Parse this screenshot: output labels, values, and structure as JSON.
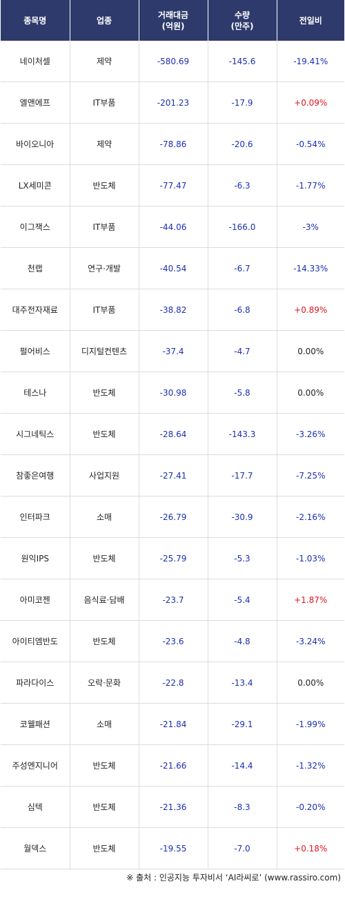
{
  "header": {
    "col_name": "종목명",
    "col_sector": "업종",
    "col_amount_line1": "거래대금",
    "col_amount_line2": "(억원)",
    "col_volume_line1": "수량",
    "col_volume_line2": "(만주)",
    "col_rate": "전일비"
  },
  "colors": {
    "header_bg": "#2e3a6b",
    "negative": "#1a2fb0",
    "positive": "#e0141e",
    "neutral": "#222222"
  },
  "rows": [
    {
      "name": "네이처셀",
      "sector": "제약",
      "amount": "-580.69",
      "volume": "-145.6",
      "rate": "-19.41%",
      "dir": "neg"
    },
    {
      "name": "엘앤에프",
      "sector": "IT부품",
      "amount": "-201.23",
      "volume": "-17.9",
      "rate": "+0.09%",
      "dir": "pos"
    },
    {
      "name": "바이오니아",
      "sector": "제약",
      "amount": "-78.86",
      "volume": "-20.6",
      "rate": "-0.54%",
      "dir": "neg"
    },
    {
      "name": "LX세미콘",
      "sector": "반도체",
      "amount": "-77.47",
      "volume": "-6.3",
      "rate": "-1.77%",
      "dir": "neg"
    },
    {
      "name": "이그잭스",
      "sector": "IT부품",
      "amount": "-44.06",
      "volume": "-166.0",
      "rate": "-3%",
      "dir": "neg"
    },
    {
      "name": "천랩",
      "sector": "연구·개발",
      "amount": "-40.54",
      "volume": "-6.7",
      "rate": "-14.33%",
      "dir": "neg"
    },
    {
      "name": "대주전자재료",
      "sector": "IT부품",
      "amount": "-38.82",
      "volume": "-6.8",
      "rate": "+0.89%",
      "dir": "pos"
    },
    {
      "name": "펄어비스",
      "sector": "디지털컨텐츠",
      "amount": "-37.4",
      "volume": "-4.7",
      "rate": "0.00%",
      "dir": "zero"
    },
    {
      "name": "테스나",
      "sector": "반도체",
      "amount": "-30.98",
      "volume": "-5.8",
      "rate": "0.00%",
      "dir": "zero"
    },
    {
      "name": "시그네틱스",
      "sector": "반도체",
      "amount": "-28.64",
      "volume": "-143.3",
      "rate": "-3.26%",
      "dir": "neg"
    },
    {
      "name": "참좋은여행",
      "sector": "사업지원",
      "amount": "-27.41",
      "volume": "-17.7",
      "rate": "-7.25%",
      "dir": "neg"
    },
    {
      "name": "인터파크",
      "sector": "소매",
      "amount": "-26.79",
      "volume": "-30.9",
      "rate": "-2.16%",
      "dir": "neg"
    },
    {
      "name": "원익IPS",
      "sector": "반도체",
      "amount": "-25.79",
      "volume": "-5.3",
      "rate": "-1.03%",
      "dir": "neg"
    },
    {
      "name": "아미코젠",
      "sector": "음식료·담배",
      "amount": "-23.7",
      "volume": "-5.4",
      "rate": "+1.87%",
      "dir": "pos"
    },
    {
      "name": "아이티엠반도",
      "sector": "반도체",
      "amount": "-23.6",
      "volume": "-4.8",
      "rate": "-3.24%",
      "dir": "neg"
    },
    {
      "name": "파라다이스",
      "sector": "오락·문화",
      "amount": "-22.8",
      "volume": "-13.4",
      "rate": "0.00%",
      "dir": "zero"
    },
    {
      "name": "코웰패션",
      "sector": "소매",
      "amount": "-21.84",
      "volume": "-29.1",
      "rate": "-1.99%",
      "dir": "neg"
    },
    {
      "name": "주성엔지니어",
      "sector": "반도체",
      "amount": "-21.66",
      "volume": "-14.4",
      "rate": "-1.32%",
      "dir": "neg"
    },
    {
      "name": "심텍",
      "sector": "반도체",
      "amount": "-21.36",
      "volume": "-8.3",
      "rate": "-0.20%",
      "dir": "neg"
    },
    {
      "name": "월덱스",
      "sector": "반도체",
      "amount": "-19.55",
      "volume": "-7.0",
      "rate": "+0.18%",
      "dir": "pos"
    }
  ],
  "footer": {
    "source": "※ 출처 : 인공지능 투자비서 ‘AI라씨로’ (www.rassiro.com)"
  }
}
